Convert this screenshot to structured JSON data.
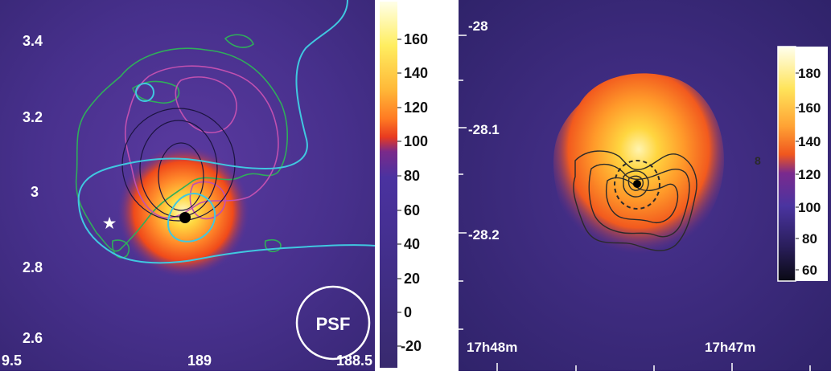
{
  "left_panel": {
    "y_ticks": [
      "3.4",
      "3.2",
      "3",
      "2.8",
      "2.6"
    ],
    "x_ticks": [
      "9.5",
      "189",
      "188.5"
    ],
    "psf_label": "PSF",
    "colorbar_ticks": [
      "160",
      "140",
      "120",
      "100",
      "80",
      "60",
      "40",
      "20",
      "0",
      "-20"
    ],
    "colors": {
      "background": "#46308c",
      "contour_green": "#2fae5a",
      "contour_magenta": "#c050b0",
      "contour_cyan": "#40c8e0",
      "hot": "#ff6a1e",
      "core": "#ffe84a"
    }
  },
  "right_panel": {
    "y_ticks": [
      "-28",
      "-28.1",
      "-28.2"
    ],
    "x_ticks": [
      "17h48m",
      "17h47m"
    ],
    "colorbar_ticks": [
      "180",
      "160",
      "140",
      "120",
      "100",
      "80",
      "60"
    ],
    "colors": {
      "background": "#3a2a78",
      "contour": "#2a2a2a"
    }
  }
}
